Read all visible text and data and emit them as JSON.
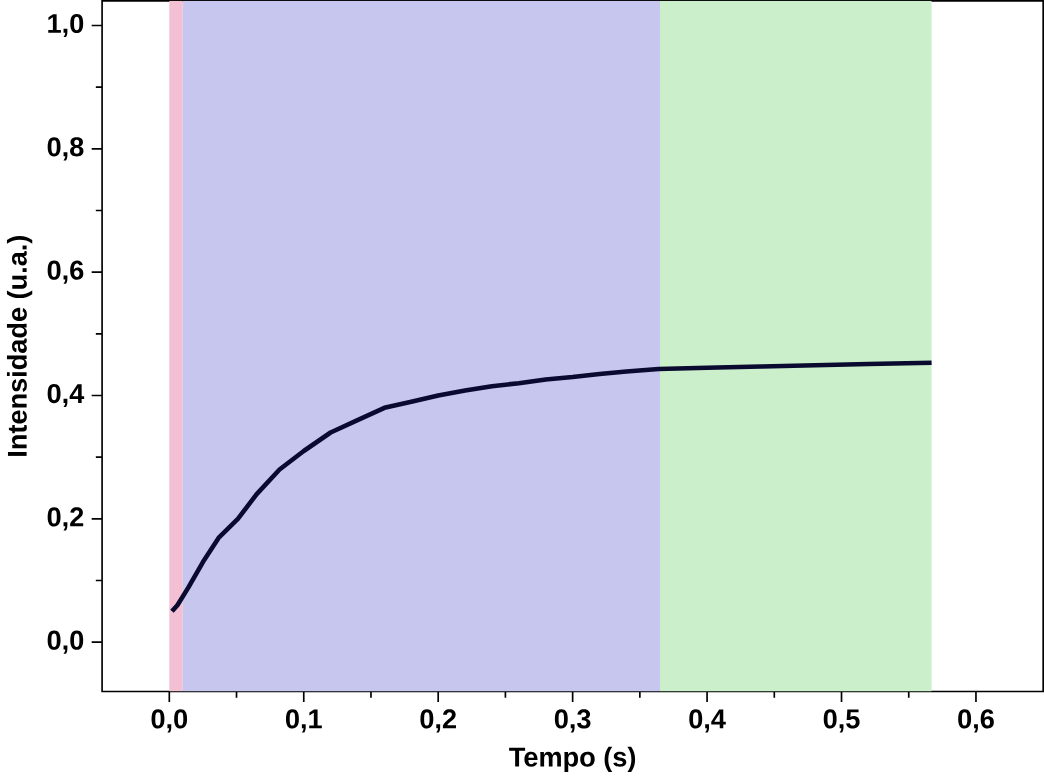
{
  "chart_data": {
    "type": "line",
    "xlabel": "Tempo (s)",
    "ylabel": "Intensidade (u.a.)",
    "xlim": [
      -0.05,
      0.65
    ],
    "ylim": [
      -0.08,
      1.04
    ],
    "xticks": [
      {
        "value": 0,
        "label": "0,0"
      },
      {
        "value": 0.1,
        "label": "0,1"
      },
      {
        "value": 0.2,
        "label": "0,2"
      },
      {
        "value": 0.3,
        "label": "0,3"
      },
      {
        "value": 0.4,
        "label": "0,4"
      },
      {
        "value": 0.5,
        "label": "0,5"
      },
      {
        "value": 0.6,
        "label": "0,6"
      }
    ],
    "yticks": [
      {
        "value": 0,
        "label": "0,0"
      },
      {
        "value": 0.2,
        "label": "0,2"
      },
      {
        "value": 0.4,
        "label": "0,4"
      },
      {
        "value": 0.6,
        "label": "0,6"
      },
      {
        "value": 0.8,
        "label": "0,8"
      },
      {
        "value": 1.0,
        "label": "1,0"
      }
    ],
    "bands": [
      {
        "axis": "x",
        "from": 0,
        "to": 0.01,
        "color": "#f2c0d2"
      },
      {
        "axis": "x",
        "from": 0.01,
        "to": 0.365,
        "color": "#c6c6ee"
      },
      {
        "axis": "x",
        "from": 0.365,
        "to": 0.567,
        "color": "#cbeecb"
      }
    ],
    "series": [
      {
        "color": "#0a0a30",
        "x": [
          0.002,
          0.006,
          0.014,
          0.025,
          0.037,
          0.051,
          0.065,
          0.082,
          0.1,
          0.12,
          0.14,
          0.16,
          0.18,
          0.2,
          0.22,
          0.24,
          0.26,
          0.28,
          0.3,
          0.32,
          0.34,
          0.364,
          0.4,
          0.44,
          0.48,
          0.52,
          0.567
        ],
        "values": [
          0.05,
          0.06,
          0.088,
          0.13,
          0.17,
          0.2,
          0.24,
          0.28,
          0.31,
          0.34,
          0.36,
          0.38,
          0.39,
          0.4,
          0.408,
          0.415,
          0.42,
          0.426,
          0.43,
          0.435,
          0.439,
          0.443,
          0.445,
          0.447,
          0.449,
          0.451,
          0.453
        ]
      }
    ],
    "grid": false,
    "marker": "none",
    "line_style": "solid"
  }
}
